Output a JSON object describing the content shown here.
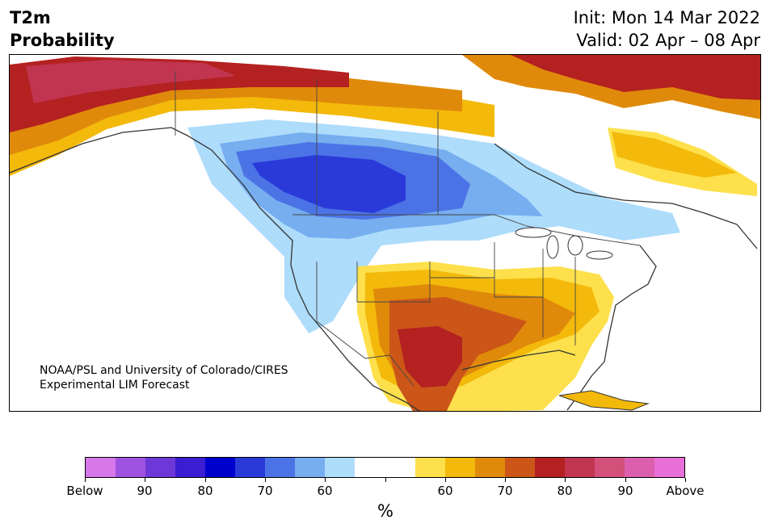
{
  "header": {
    "variable": "T2m",
    "product": "Probability",
    "init": "Init: Mon 14 Mar 2022",
    "valid": "Valid: 02 Apr – 08 Apr"
  },
  "map": {
    "region": "North America",
    "credit_line1": "NOAA/PSL and University of Colorado/CIRES",
    "credit_line2": "Experimental LIM Forecast",
    "below_colors": [
      "#d677ea",
      "#9e53e0",
      "#6e38d8",
      "#3b1dd2",
      "#0000cd",
      "#2a3ad9",
      "#4c73e6",
      "#76aef0",
      "#aedcfb"
    ],
    "neutral_color": "#ffffff",
    "above_colors": [
      "#fde04b",
      "#f3b90b",
      "#e08a0b",
      "#cb5618",
      "#b42121",
      "#c13551",
      "#d2507a",
      "#dc5fad",
      "#e86fd8"
    ]
  },
  "colorbar": {
    "colors": [
      "#d677ea",
      "#9e53e0",
      "#6e38d8",
      "#3b1dd2",
      "#0000cd",
      "#2a3ad9",
      "#4c73e6",
      "#76aef0",
      "#aedcfb",
      "#ffffff",
      "#ffffff",
      "#fde04b",
      "#f3b90b",
      "#e08a0b",
      "#cb5618",
      "#b42121",
      "#c13551",
      "#d2507a",
      "#dc5fad",
      "#e86fd8"
    ],
    "ticks": [
      "Below",
      "90",
      "80",
      "70",
      "60",
      "",
      "60",
      "70",
      "80",
      "90",
      "Above"
    ],
    "unit": "%"
  }
}
